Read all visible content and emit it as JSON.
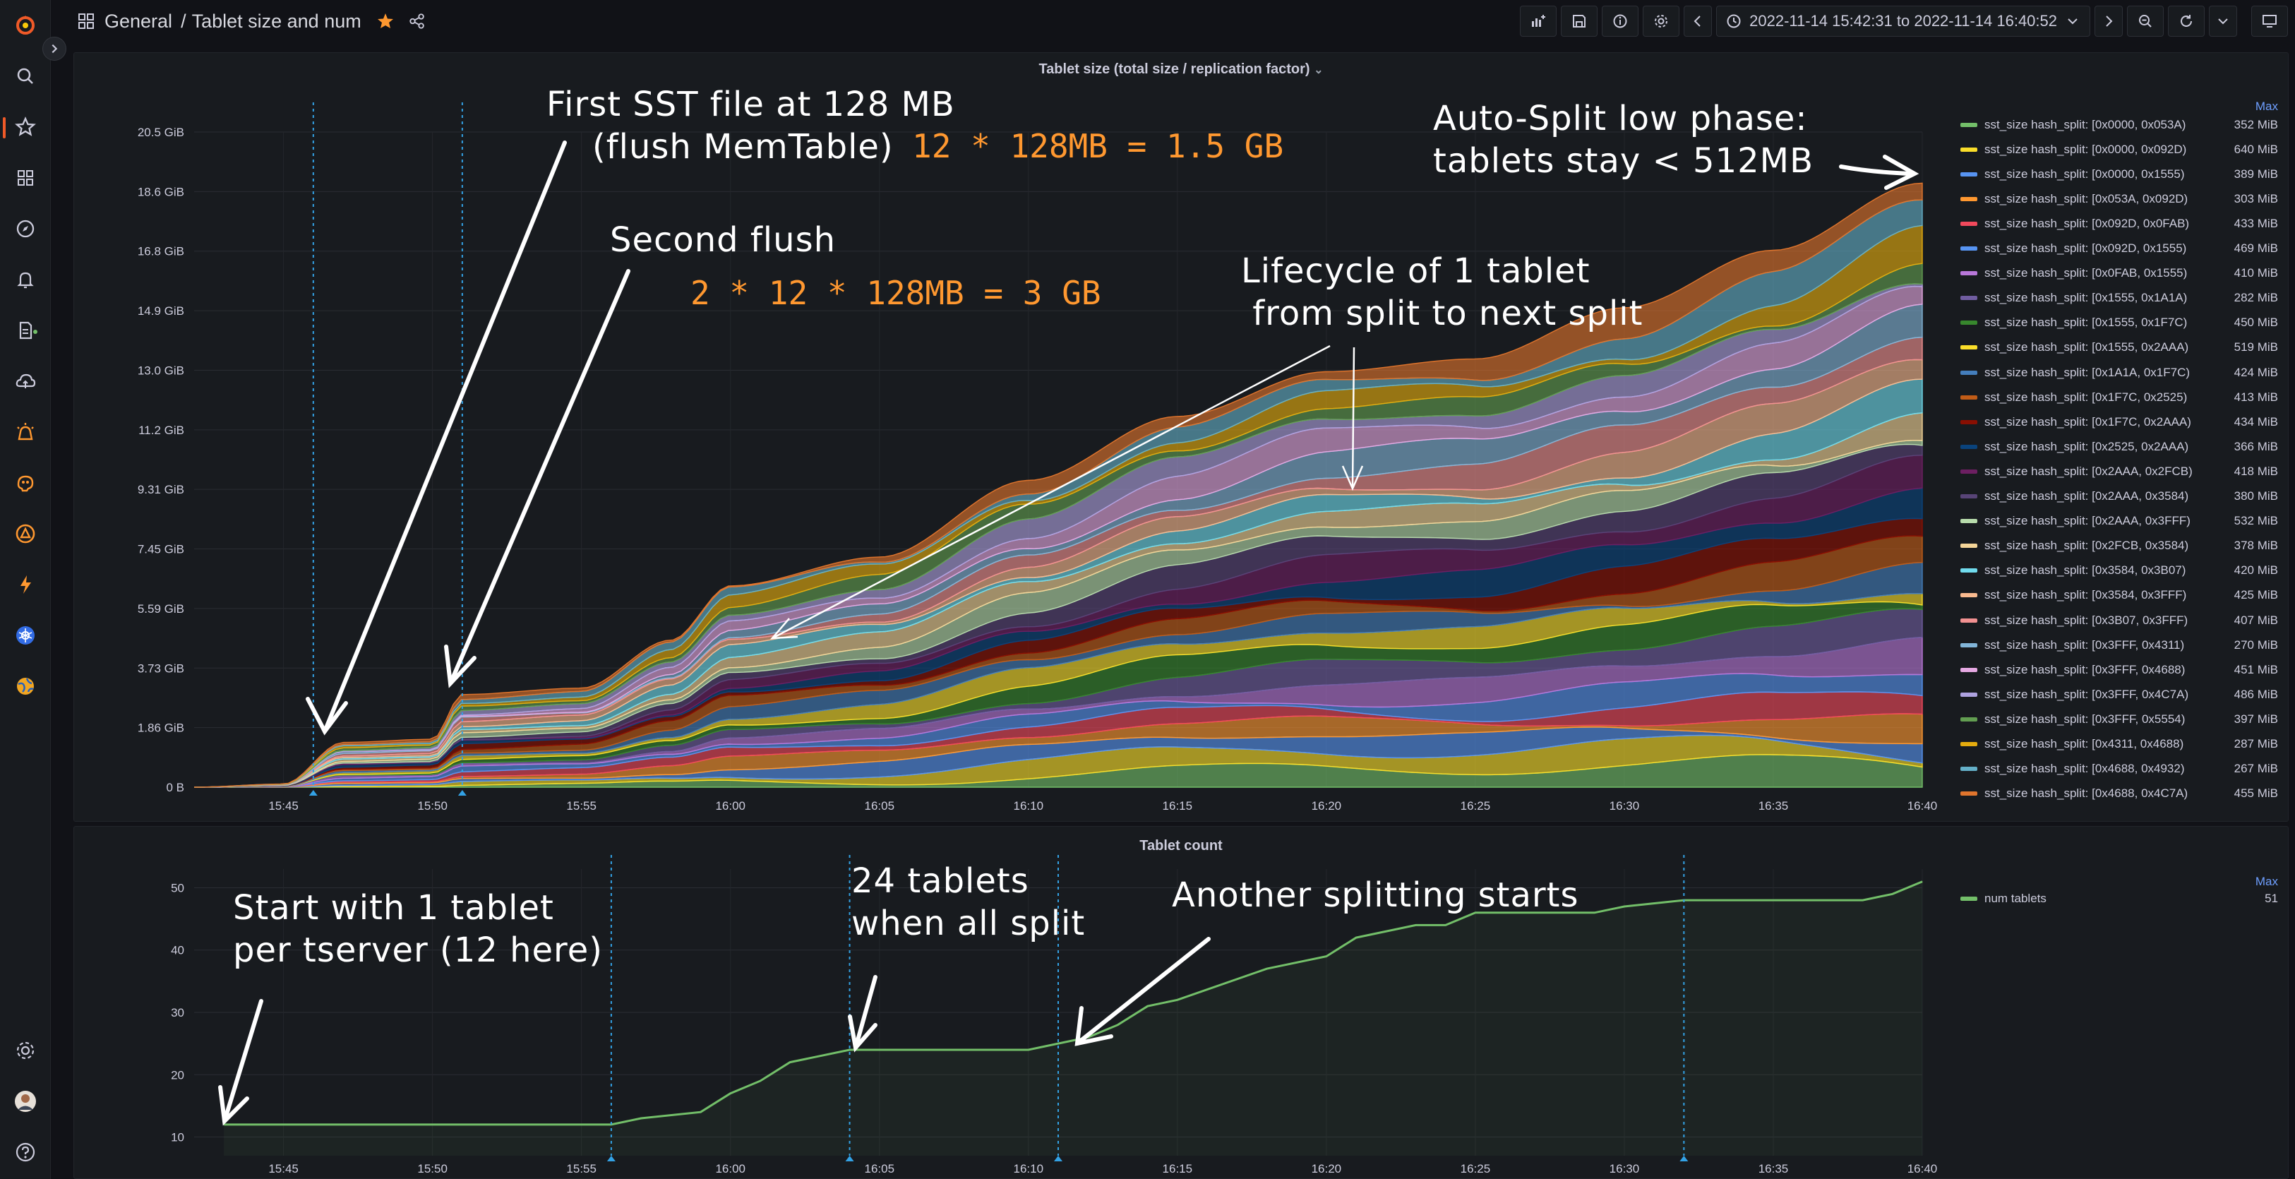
{
  "breadcrumb": {
    "folder": "General",
    "separator": "/",
    "dashboard": "Tablet size and num"
  },
  "toolbar": {
    "time_range": "2022-11-14 15:42:31 to 2022-11-14 16:40:52"
  },
  "icons": {
    "sidebar": [
      "grafana-logo-icon",
      "search-icon",
      "starred-icon",
      "dashboards-icon",
      "explore-icon",
      "alerting-icon",
      "reports-icon",
      "cloud-icon",
      "oncall-icon",
      "ml-icon",
      "incident-icon",
      "k6-icon",
      "kubernetes-icon",
      "frontend-observability-icon",
      "settings-icon",
      "avatar",
      "help-icon"
    ]
  },
  "colors": {
    "accent": "#f05a28",
    "link": "#6e9fff",
    "annotation": "#ffffff",
    "highlight": "#ff9830",
    "count_line": "#73bf69"
  },
  "panel_size": {
    "title": "Tablet size (total size / replication factor)",
    "legend_header": "Max",
    "legend": [
      {
        "name": "sst_size hash_split: [0x0000, 0x053A)",
        "max": "352 MiB",
        "color": "#73bf69"
      },
      {
        "name": "sst_size hash_split: [0x0000, 0x092D)",
        "max": "640 MiB",
        "color": "#fade2a"
      },
      {
        "name": "sst_size hash_split: [0x0000, 0x1555)",
        "max": "389 MiB",
        "color": "#5794f2"
      },
      {
        "name": "sst_size hash_split: [0x053A, 0x092D)",
        "max": "303 MiB",
        "color": "#ff9830"
      },
      {
        "name": "sst_size hash_split: [0x092D, 0x0FAB)",
        "max": "433 MiB",
        "color": "#f2495c"
      },
      {
        "name": "sst_size hash_split: [0x092D, 0x1555)",
        "max": "469 MiB",
        "color": "#5794f2"
      },
      {
        "name": "sst_size hash_split: [0x0FAB, 0x1555)",
        "max": "410 MiB",
        "color": "#b877d9"
      },
      {
        "name": "sst_size hash_split: [0x1555, 0x1A1A)",
        "max": "282 MiB",
        "color": "#705da0"
      },
      {
        "name": "sst_size hash_split: [0x1555, 0x1F7C)",
        "max": "450 MiB",
        "color": "#37872d"
      },
      {
        "name": "sst_size hash_split: [0x1555, 0x2AAA)",
        "max": "519 MiB",
        "color": "#fade2a"
      },
      {
        "name": "sst_size hash_split: [0x1A1A, 0x1F7C)",
        "max": "424 MiB",
        "color": "#447ebc"
      },
      {
        "name": "sst_size hash_split: [0x1F7C, 0x2525)",
        "max": "413 MiB",
        "color": "#c15c17"
      },
      {
        "name": "sst_size hash_split: [0x1F7C, 0x2AAA)",
        "max": "434 MiB",
        "color": "#890f02"
      },
      {
        "name": "sst_size hash_split: [0x2525, 0x2AAA)",
        "max": "366 MiB",
        "color": "#0a437c"
      },
      {
        "name": "sst_size hash_split: [0x2AAA, 0x2FCB)",
        "max": "418 MiB",
        "color": "#6d1f62"
      },
      {
        "name": "sst_size hash_split: [0x2AAA, 0x3584)",
        "max": "380 MiB",
        "color": "#584477"
      },
      {
        "name": "sst_size hash_split: [0x2AAA, 0x3FFF)",
        "max": "532 MiB",
        "color": "#b7dbab"
      },
      {
        "name": "sst_size hash_split: [0x2FCB, 0x3584)",
        "max": "378 MiB",
        "color": "#f4d598"
      },
      {
        "name": "sst_size hash_split: [0x3584, 0x3B07)",
        "max": "420 MiB",
        "color": "#70dbed"
      },
      {
        "name": "sst_size hash_split: [0x3584, 0x3FFF)",
        "max": "425 MiB",
        "color": "#f9ba8f"
      },
      {
        "name": "sst_size hash_split: [0x3B07, 0x3FFF)",
        "max": "407 MiB",
        "color": "#f29191"
      },
      {
        "name": "sst_size hash_split: [0x3FFF, 0x4311)",
        "max": "270 MiB",
        "color": "#82b5d8"
      },
      {
        "name": "sst_size hash_split: [0x3FFF, 0x4688)",
        "max": "451 MiB",
        "color": "#e5a8e2"
      },
      {
        "name": "sst_size hash_split: [0x3FFF, 0x4C7A)",
        "max": "486 MiB",
        "color": "#aea2e0"
      },
      {
        "name": "sst_size hash_split: [0x3FFF, 0x5554)",
        "max": "397 MiB",
        "color": "#629e51"
      },
      {
        "name": "sst_size hash_split: [0x4311, 0x4688)",
        "max": "287 MiB",
        "color": "#e5ac0e"
      },
      {
        "name": "sst_size hash_split: [0x4688, 0x4932)",
        "max": "267 MiB",
        "color": "#64b0c8"
      },
      {
        "name": "sst_size hash_split: [0x4688, 0x4C7A)",
        "max": "455 MiB",
        "color": "#e0752d"
      }
    ],
    "annotations": {
      "first_sst": "First SST file at 128 MB\n    (flush MemTable)",
      "first_calc": "12 * 128MB = 1.5 GB",
      "second_flush": "Second flush",
      "second_calc": "2 * 12 * 128MB = 3 GB",
      "lifecycle": "Lifecycle of 1 tablet\n from split to next split",
      "autosplit": "Auto-Split low phase:\ntablets stay < 512MB"
    }
  },
  "panel_count": {
    "title": "Tablet count",
    "legend_header": "Max",
    "legend": [
      {
        "name": "num tablets",
        "max": "51",
        "color": "#73bf69"
      }
    ],
    "annotations": {
      "start": "Start with 1 tablet\nper tserver (12 here)",
      "all_split": "24 tablets\nwhen all split",
      "another": "Another splitting starts"
    }
  },
  "chart_data": [
    {
      "type": "area",
      "title": "Tablet size (total size / replication factor)",
      "stacked": true,
      "x": [
        "15:42",
        "15:45",
        "15:47",
        "15:50",
        "15:51",
        "15:55",
        "15:58",
        "16:00",
        "16:05",
        "16:10",
        "16:15",
        "16:20",
        "16:25",
        "16:30",
        "16:35",
        "16:40"
      ],
      "total_gib": [
        0,
        0.1,
        1.4,
        1.5,
        2.9,
        3.1,
        4.6,
        6.3,
        7.2,
        9.6,
        11.6,
        13.0,
        13.4,
        15.0,
        16.8,
        18.9
      ],
      "x_ticks": [
        "15:45",
        "15:50",
        "15:55",
        "16:00",
        "16:05",
        "16:10",
        "16:15",
        "16:20",
        "16:25",
        "16:30",
        "16:35",
        "16:40"
      ],
      "y_ticks": [
        "0 B",
        "1.86 GiB",
        "3.73 GiB",
        "5.59 GiB",
        "7.45 GiB",
        "9.31 GiB",
        "11.2 GiB",
        "13.0 GiB",
        "14.9 GiB",
        "16.8 GiB",
        "18.6 GiB",
        "20.5 GiB"
      ],
      "ylim": [
        0,
        20.5
      ],
      "legend_placement": "right",
      "grid": true
    },
    {
      "type": "line",
      "title": "Tablet count",
      "series": [
        {
          "name": "num tablets",
          "x": [
            "15:43",
            "15:56",
            "15:57",
            "15:59",
            "16:00",
            "16:01",
            "16:02",
            "16:04",
            "16:10",
            "16:11",
            "16:12",
            "16:13",
            "16:14",
            "16:15",
            "16:18",
            "16:20",
            "16:21",
            "16:23",
            "16:24",
            "16:25",
            "16:27",
            "16:29",
            "16:30",
            "16:32",
            "16:38",
            "16:39",
            "16:40"
          ],
          "values": [
            12,
            12,
            13,
            14,
            17,
            19,
            22,
            24,
            24,
            25,
            26,
            28,
            31,
            32,
            37,
            39,
            42,
            44,
            44,
            46,
            46,
            46,
            47,
            48,
            48,
            49,
            51
          ]
        }
      ],
      "x_ticks": [
        "15:45",
        "15:50",
        "15:55",
        "16:00",
        "16:05",
        "16:10",
        "16:15",
        "16:20",
        "16:25",
        "16:30",
        "16:35",
        "16:40"
      ],
      "y_ticks": [
        "10",
        "20",
        "30",
        "40",
        "50"
      ],
      "ylim": [
        7,
        53
      ],
      "legend_placement": "right",
      "grid": true
    }
  ]
}
